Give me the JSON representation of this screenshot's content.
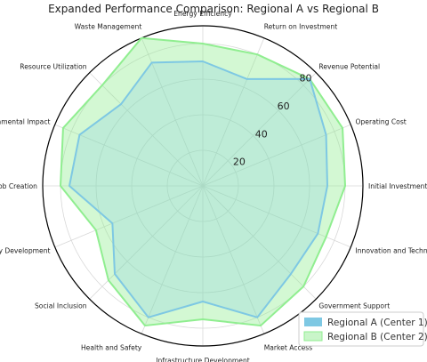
{
  "chart_data": {
    "type": "radar",
    "title": "Expanded Performance Comparison: Regional A vs Regional B",
    "categories": [
      "Energy Efficiency",
      "Return on Investment",
      "Revenue Potential",
      "Operating Cost",
      "Initial Investment Cost",
      "Innovation and Technology Adoption",
      "Government Support",
      "Market Access",
      "Infrastructure Development",
      "Health and Safety",
      "Social Inclusion",
      "Community Development",
      "Job Creation",
      "Environmental Impact",
      "Resource Utilization",
      "Waste Management"
    ],
    "rlim": [
      0,
      90
    ],
    "rticks": [
      20,
      40,
      60,
      80
    ],
    "rtick_labels": [
      "20",
      "40",
      "60",
      "80"
    ],
    "series": [
      {
        "name": "Regional A (Center 1)",
        "color": "#7ec8e3",
        "values": [
          70,
          65,
          85,
          75,
          70,
          70,
          70,
          80,
          65,
          80,
          70,
          55,
          75,
          75,
          65,
          75
        ]
      },
      {
        "name": "Regional B (Center 2)",
        "color": "#90ee90",
        "values": [
          80,
          80,
          85,
          85,
          80,
          75,
          80,
          85,
          75,
          85,
          75,
          65,
          80,
          85,
          80,
          90
        ]
      }
    ],
    "legend_position": "bottom-right",
    "grid": true
  }
}
